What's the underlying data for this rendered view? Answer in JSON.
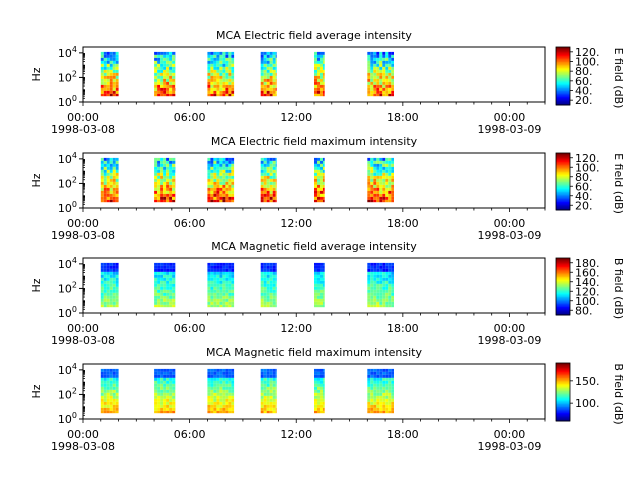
{
  "chart_data": [
    {
      "type": "heatmap",
      "title": "MCA  Electric field average intensity",
      "ylabel": "Hz",
      "yscale": "log",
      "ylim": [
        1,
        30000
      ],
      "y_ticks": [
        "10^0",
        "10^2",
        "10^4"
      ],
      "xlim": [
        "1998-03-08 00:00",
        "1998-03-09 02:00"
      ],
      "x_ticks": [
        {
          "time": "00:00",
          "date": "1998-03-08"
        },
        {
          "time": "06:00",
          "date": ""
        },
        {
          "time": "12:00",
          "date": ""
        },
        {
          "time": "18:00",
          "date": ""
        },
        {
          "time": "00:00",
          "date": "1998-03-09"
        }
      ],
      "colorbar": {
        "label": "E field (dB)",
        "ticks": [
          "20.",
          "40.",
          "60.",
          "80.",
          "100.",
          "120."
        ],
        "range": [
          10,
          130
        ]
      },
      "data_intervals_hours": [
        [
          1.0,
          2.0
        ],
        [
          4.0,
          5.2
        ],
        [
          7.0,
          8.5
        ],
        [
          10.0,
          10.9
        ],
        [
          13.0,
          13.6
        ],
        [
          16.0,
          17.5
        ]
      ],
      "intensity_profile": "high at low frequency, falling with frequency"
    },
    {
      "type": "heatmap",
      "title": "MCA  Electric field maximum intensity",
      "ylabel": "Hz",
      "yscale": "log",
      "ylim": [
        1,
        30000
      ],
      "y_ticks": [
        "10^0",
        "10^2",
        "10^4"
      ],
      "xlim": [
        "1998-03-08 00:00",
        "1998-03-09 02:00"
      ],
      "x_ticks": [
        {
          "time": "00:00",
          "date": "1998-03-08"
        },
        {
          "time": "06:00",
          "date": ""
        },
        {
          "time": "12:00",
          "date": ""
        },
        {
          "time": "18:00",
          "date": ""
        },
        {
          "time": "00:00",
          "date": "1998-03-09"
        }
      ],
      "colorbar": {
        "label": "E field (dB)",
        "ticks": [
          "20.",
          "40.",
          "60.",
          "80.",
          "100.",
          "120."
        ],
        "range": [
          10,
          130
        ]
      },
      "data_intervals_hours": [
        [
          1.0,
          2.0
        ],
        [
          4.0,
          5.2
        ],
        [
          7.0,
          8.5
        ],
        [
          10.0,
          10.9
        ],
        [
          13.0,
          13.6
        ],
        [
          16.0,
          17.5
        ]
      ],
      "intensity_profile": "high at low frequency, falling with frequency"
    },
    {
      "type": "heatmap",
      "title": "MCA  Magnetic field average intensity",
      "ylabel": "Hz",
      "yscale": "log",
      "ylim": [
        1,
        30000
      ],
      "y_ticks": [
        "10^0",
        "10^2",
        "10^4"
      ],
      "xlim": [
        "1998-03-08 00:00",
        "1998-03-09 02:00"
      ],
      "x_ticks": [
        {
          "time": "00:00",
          "date": "1998-03-08"
        },
        {
          "time": "06:00",
          "date": ""
        },
        {
          "time": "12:00",
          "date": ""
        },
        {
          "time": "18:00",
          "date": ""
        },
        {
          "time": "00:00",
          "date": "1998-03-09"
        }
      ],
      "colorbar": {
        "label": "B field (dB)",
        "ticks": [
          "80.",
          "100.",
          "120.",
          "140.",
          "160.",
          "180."
        ],
        "range": [
          70,
          190
        ]
      },
      "data_intervals_hours": [
        [
          1.0,
          2.0
        ],
        [
          4.0,
          5.2
        ],
        [
          7.0,
          8.5
        ],
        [
          10.0,
          10.9
        ],
        [
          13.0,
          13.6
        ],
        [
          16.0,
          17.5
        ]
      ],
      "intensity_profile": "green mid range, blue at high frequency"
    },
    {
      "type": "heatmap",
      "title": "MCA  Magnetic field maximum intensity",
      "ylabel": "Hz",
      "yscale": "log",
      "ylim": [
        1,
        30000
      ],
      "y_ticks": [
        "10^0",
        "10^2",
        "10^4"
      ],
      "xlim": [
        "1998-03-08 00:00",
        "1998-03-09 02:00"
      ],
      "x_ticks": [
        {
          "time": "00:00",
          "date": "1998-03-08"
        },
        {
          "time": "06:00",
          "date": ""
        },
        {
          "time": "12:00",
          "date": ""
        },
        {
          "time": "18:00",
          "date": ""
        },
        {
          "time": "00:00",
          "date": "1998-03-09"
        }
      ],
      "colorbar": {
        "label": "B field (dB)",
        "ticks": [
          "100.",
          "150."
        ],
        "range": [
          60,
          190
        ]
      },
      "data_intervals_hours": [
        [
          1.0,
          2.0
        ],
        [
          4.0,
          5.2
        ],
        [
          7.0,
          8.5
        ],
        [
          10.0,
          10.9
        ],
        [
          13.0,
          13.6
        ],
        [
          16.0,
          17.5
        ]
      ],
      "intensity_profile": "yellow at low frequency, blue at high frequency"
    }
  ]
}
